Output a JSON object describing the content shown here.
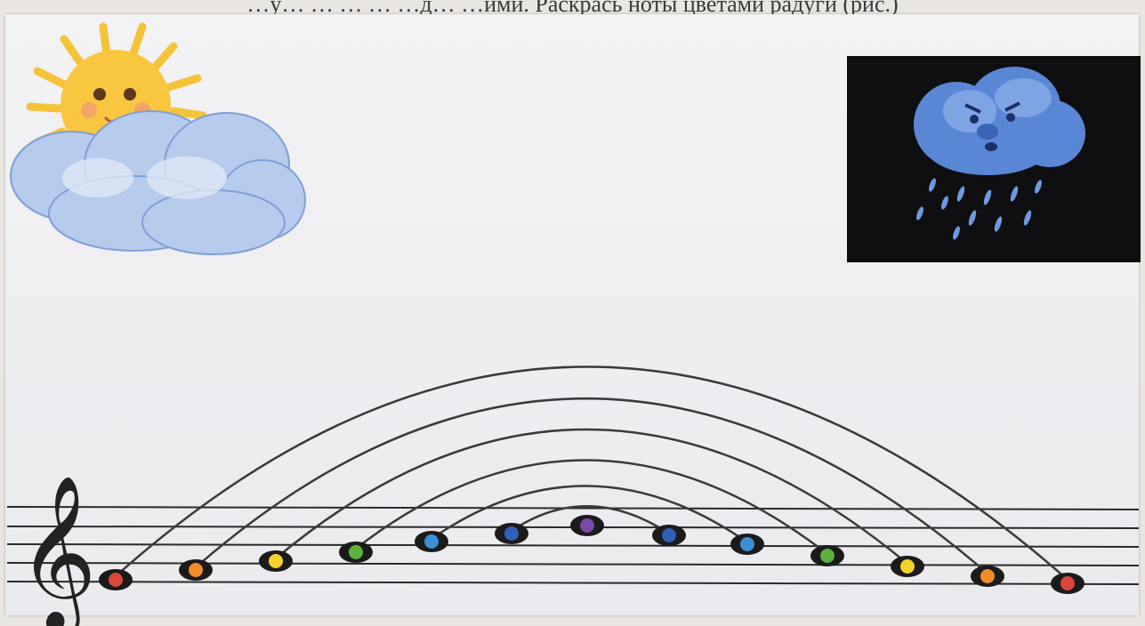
{
  "caption": "…у… … … … …д… …ими. Раскрась ноты цветами радуги (рис.)",
  "colors": {
    "staff": "#2a2a2a",
    "arc": "#3a3a3a",
    "background": "#efeef1",
    "storm_bg": "#0f0f12",
    "note_outline": "#1b1b1b"
  },
  "notes": [
    {
      "color": "red"
    },
    {
      "color": "orange"
    },
    {
      "color": "yellow"
    },
    {
      "color": "green"
    },
    {
      "color": "light-blue"
    },
    {
      "color": "blue"
    },
    {
      "color": "violet"
    },
    {
      "color": "blue"
    },
    {
      "color": "light-blue"
    },
    {
      "color": "green"
    },
    {
      "color": "yellow"
    },
    {
      "color": "orange"
    },
    {
      "color": "red"
    }
  ],
  "note_color_map": {
    "red": "#d9473c",
    "orange": "#f08c2a",
    "yellow": "#f2d22b",
    "green": "#5cb13d",
    "light-blue": "#3d8fd6",
    "blue": "#2f5fb8",
    "violet": "#7a4aa8"
  },
  "icons": [
    "treble-clef-icon",
    "sun-cloud-illustration",
    "rain-cloud-illustration"
  ]
}
